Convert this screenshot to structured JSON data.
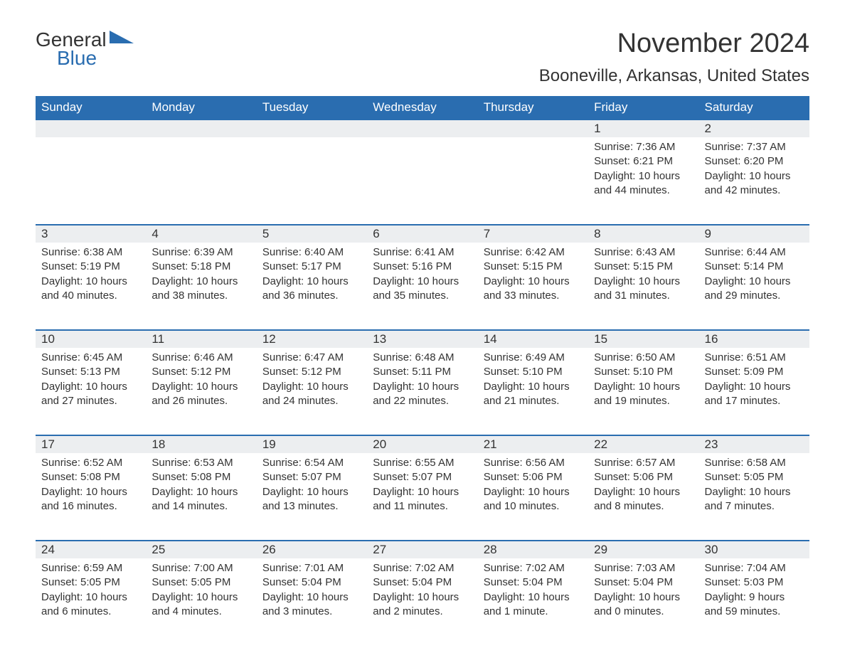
{
  "brand": {
    "word1": "General",
    "word2": "Blue"
  },
  "title": "November 2024",
  "location": "Booneville, Arkansas, United States",
  "colors": {
    "header_bg": "#2a6db0",
    "header_text": "#ffffff",
    "daynum_bg": "#eceef0",
    "daynum_border": "#2a6db0",
    "text": "#333333",
    "page_bg": "#ffffff",
    "brand_blue": "#2a6db0"
  },
  "typography": {
    "title_fontsize": 38,
    "location_fontsize": 24,
    "dayhead_fontsize": 17,
    "daynum_fontsize": 17,
    "cell_fontsize": 15,
    "logo_fontsize": 28
  },
  "day_headers": [
    "Sunday",
    "Monday",
    "Tuesday",
    "Wednesday",
    "Thursday",
    "Friday",
    "Saturday"
  ],
  "weeks": [
    {
      "days": [
        null,
        null,
        null,
        null,
        null,
        {
          "num": "1",
          "sunrise": "Sunrise: 7:36 AM",
          "sunset": "Sunset: 6:21 PM",
          "daylight": "Daylight: 10 hours and 44 minutes."
        },
        {
          "num": "2",
          "sunrise": "Sunrise: 7:37 AM",
          "sunset": "Sunset: 6:20 PM",
          "daylight": "Daylight: 10 hours and 42 minutes."
        }
      ]
    },
    {
      "days": [
        {
          "num": "3",
          "sunrise": "Sunrise: 6:38 AM",
          "sunset": "Sunset: 5:19 PM",
          "daylight": "Daylight: 10 hours and 40 minutes."
        },
        {
          "num": "4",
          "sunrise": "Sunrise: 6:39 AM",
          "sunset": "Sunset: 5:18 PM",
          "daylight": "Daylight: 10 hours and 38 minutes."
        },
        {
          "num": "5",
          "sunrise": "Sunrise: 6:40 AM",
          "sunset": "Sunset: 5:17 PM",
          "daylight": "Daylight: 10 hours and 36 minutes."
        },
        {
          "num": "6",
          "sunrise": "Sunrise: 6:41 AM",
          "sunset": "Sunset: 5:16 PM",
          "daylight": "Daylight: 10 hours and 35 minutes."
        },
        {
          "num": "7",
          "sunrise": "Sunrise: 6:42 AM",
          "sunset": "Sunset: 5:15 PM",
          "daylight": "Daylight: 10 hours and 33 minutes."
        },
        {
          "num": "8",
          "sunrise": "Sunrise: 6:43 AM",
          "sunset": "Sunset: 5:15 PM",
          "daylight": "Daylight: 10 hours and 31 minutes."
        },
        {
          "num": "9",
          "sunrise": "Sunrise: 6:44 AM",
          "sunset": "Sunset: 5:14 PM",
          "daylight": "Daylight: 10 hours and 29 minutes."
        }
      ]
    },
    {
      "days": [
        {
          "num": "10",
          "sunrise": "Sunrise: 6:45 AM",
          "sunset": "Sunset: 5:13 PM",
          "daylight": "Daylight: 10 hours and 27 minutes."
        },
        {
          "num": "11",
          "sunrise": "Sunrise: 6:46 AM",
          "sunset": "Sunset: 5:12 PM",
          "daylight": "Daylight: 10 hours and 26 minutes."
        },
        {
          "num": "12",
          "sunrise": "Sunrise: 6:47 AM",
          "sunset": "Sunset: 5:12 PM",
          "daylight": "Daylight: 10 hours and 24 minutes."
        },
        {
          "num": "13",
          "sunrise": "Sunrise: 6:48 AM",
          "sunset": "Sunset: 5:11 PM",
          "daylight": "Daylight: 10 hours and 22 minutes."
        },
        {
          "num": "14",
          "sunrise": "Sunrise: 6:49 AM",
          "sunset": "Sunset: 5:10 PM",
          "daylight": "Daylight: 10 hours and 21 minutes."
        },
        {
          "num": "15",
          "sunrise": "Sunrise: 6:50 AM",
          "sunset": "Sunset: 5:10 PM",
          "daylight": "Daylight: 10 hours and 19 minutes."
        },
        {
          "num": "16",
          "sunrise": "Sunrise: 6:51 AM",
          "sunset": "Sunset: 5:09 PM",
          "daylight": "Daylight: 10 hours and 17 minutes."
        }
      ]
    },
    {
      "days": [
        {
          "num": "17",
          "sunrise": "Sunrise: 6:52 AM",
          "sunset": "Sunset: 5:08 PM",
          "daylight": "Daylight: 10 hours and 16 minutes."
        },
        {
          "num": "18",
          "sunrise": "Sunrise: 6:53 AM",
          "sunset": "Sunset: 5:08 PM",
          "daylight": "Daylight: 10 hours and 14 minutes."
        },
        {
          "num": "19",
          "sunrise": "Sunrise: 6:54 AM",
          "sunset": "Sunset: 5:07 PM",
          "daylight": "Daylight: 10 hours and 13 minutes."
        },
        {
          "num": "20",
          "sunrise": "Sunrise: 6:55 AM",
          "sunset": "Sunset: 5:07 PM",
          "daylight": "Daylight: 10 hours and 11 minutes."
        },
        {
          "num": "21",
          "sunrise": "Sunrise: 6:56 AM",
          "sunset": "Sunset: 5:06 PM",
          "daylight": "Daylight: 10 hours and 10 minutes."
        },
        {
          "num": "22",
          "sunrise": "Sunrise: 6:57 AM",
          "sunset": "Sunset: 5:06 PM",
          "daylight": "Daylight: 10 hours and 8 minutes."
        },
        {
          "num": "23",
          "sunrise": "Sunrise: 6:58 AM",
          "sunset": "Sunset: 5:05 PM",
          "daylight": "Daylight: 10 hours and 7 minutes."
        }
      ]
    },
    {
      "days": [
        {
          "num": "24",
          "sunrise": "Sunrise: 6:59 AM",
          "sunset": "Sunset: 5:05 PM",
          "daylight": "Daylight: 10 hours and 6 minutes."
        },
        {
          "num": "25",
          "sunrise": "Sunrise: 7:00 AM",
          "sunset": "Sunset: 5:05 PM",
          "daylight": "Daylight: 10 hours and 4 minutes."
        },
        {
          "num": "26",
          "sunrise": "Sunrise: 7:01 AM",
          "sunset": "Sunset: 5:04 PM",
          "daylight": "Daylight: 10 hours and 3 minutes."
        },
        {
          "num": "27",
          "sunrise": "Sunrise: 7:02 AM",
          "sunset": "Sunset: 5:04 PM",
          "daylight": "Daylight: 10 hours and 2 minutes."
        },
        {
          "num": "28",
          "sunrise": "Sunrise: 7:02 AM",
          "sunset": "Sunset: 5:04 PM",
          "daylight": "Daylight: 10 hours and 1 minute."
        },
        {
          "num": "29",
          "sunrise": "Sunrise: 7:03 AM",
          "sunset": "Sunset: 5:04 PM",
          "daylight": "Daylight: 10 hours and 0 minutes."
        },
        {
          "num": "30",
          "sunrise": "Sunrise: 7:04 AM",
          "sunset": "Sunset: 5:03 PM",
          "daylight": "Daylight: 9 hours and 59 minutes."
        }
      ]
    }
  ]
}
